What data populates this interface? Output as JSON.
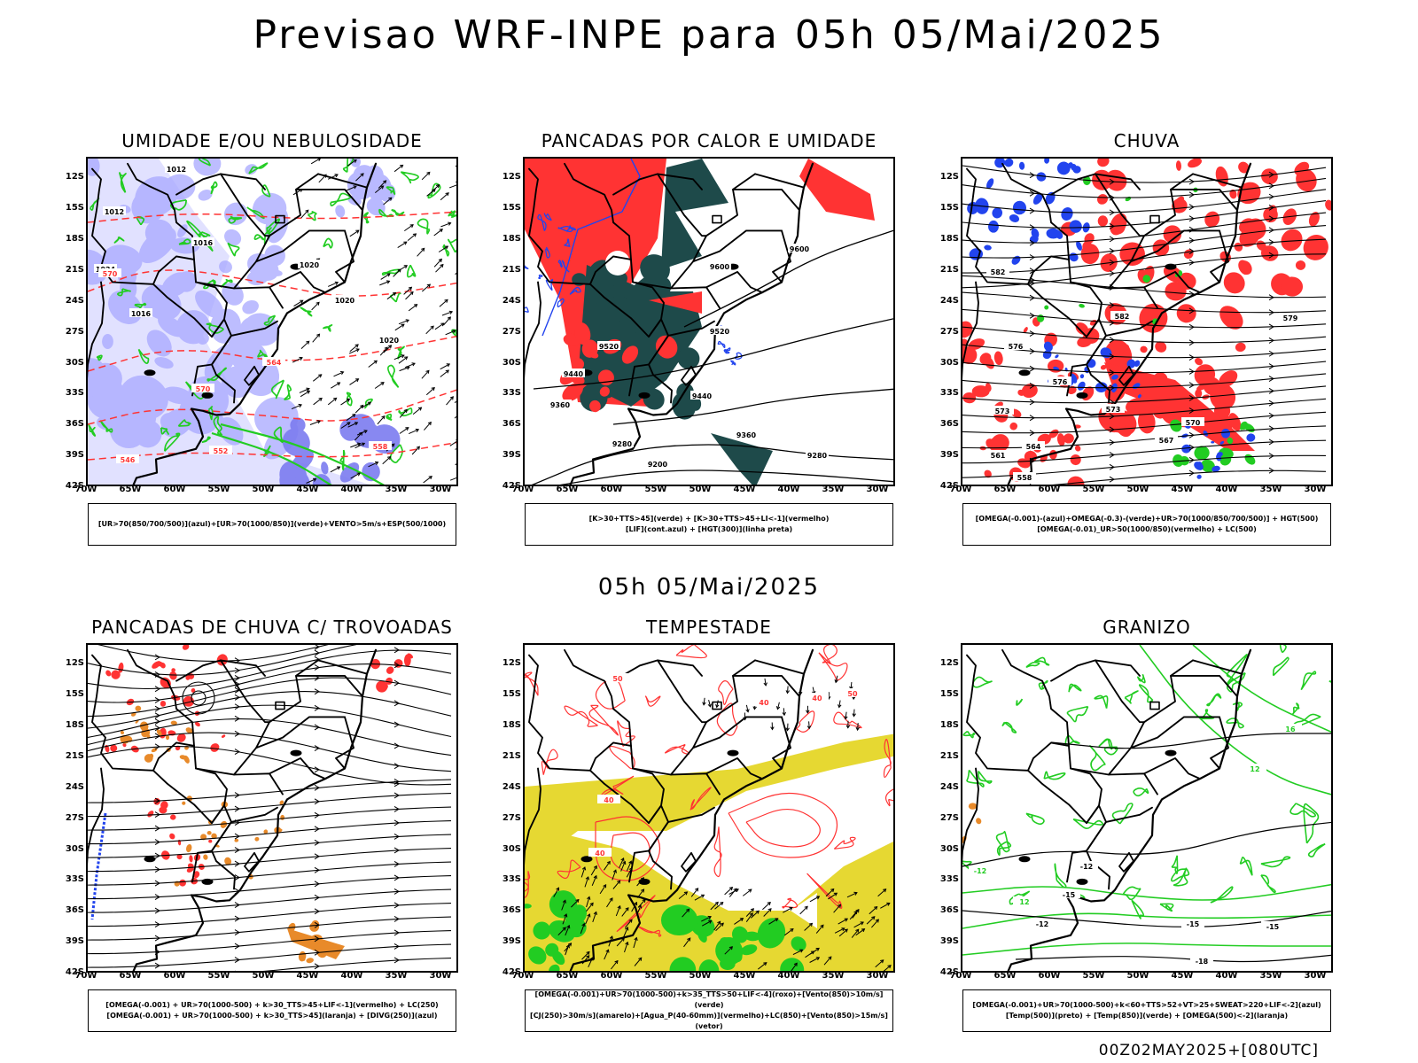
{
  "main_title": "Previsao WRF-INPE  para 05h 05/Mai/2025",
  "mid_title": "05h 05/Mai/2025",
  "footer": "00Z02MAY2025+[080UTC]",
  "lat_labels": [
    "12S",
    "15S",
    "18S",
    "21S",
    "24S",
    "27S",
    "30S",
    "33S",
    "36S",
    "39S",
    "42S"
  ],
  "lon_labels": [
    "70W",
    "65W",
    "60W",
    "55W",
    "50W",
    "45W",
    "40W",
    "35W",
    "30W"
  ],
  "colors": {
    "green": "#22cc22",
    "red": "#ff3333",
    "blue": "#2244ee",
    "lavender": "#a8a8ff",
    "darkteal": "#1e4a4a",
    "yellow": "#e6d832",
    "orange": "#e88a2a"
  },
  "panels": [
    {
      "title": "UMIDADE E/OU NEBULOSIDADE",
      "legend": [
        "[UR>70(850/700/500)](azul)+[UR>70(1000/850)](verde)+VENTO>5m/s+ESP(500/1000)"
      ],
      "labels": [
        "1012",
        "1012",
        "1016",
        "1016",
        "1020",
        "1020",
        "1020",
        "1024",
        "570",
        "570",
        "564",
        "558",
        "552",
        "546"
      ]
    },
    {
      "title": "PANCADAS POR CALOR E UMIDADE",
      "legend": [
        "[K>30+TTS>45](verde)  +  [K>30+TTS>45+LI<-1](vermelho)",
        "[LIF](cont.azul)  +  [HGT(300)](linha preta)"
      ],
      "labels": [
        "9600",
        "9600",
        "9520",
        "9520",
        "9440",
        "9440",
        "9360",
        "9360",
        "9280",
        "9280",
        "9200"
      ]
    },
    {
      "title": "CHUVA",
      "legend": [
        "[OMEGA(-0.001)-(azul)+OMEGA(-0.3)-(verde)+UR>70(1000/850/700/500)]  +  HGT(500)",
        "[OMEGA(-0.01)_UR>50(1000/850)(vermelho)  +  LC(500)"
      ],
      "labels": [
        "582",
        "582",
        "579",
        "576",
        "576",
        "573",
        "573",
        "570",
        "567",
        "564",
        "561",
        "558"
      ]
    },
    {
      "title": "PANCADAS DE CHUVA C/ TROVOADAS",
      "legend": [
        "[OMEGA(-0.001)  +  UR>70(1000-500)  +  k>30_TTS>45+LIF<-1](vermelho)  +  LC(250)",
        "[OMEGA(-0.001)  +  UR>70(1000-500)  +  k>30_TTS>45](laranja)  +  [DIVG(250)](azul)"
      ],
      "labels": []
    },
    {
      "title": "TEMPESTADE",
      "legend": [
        "[OMEGA(-0.001)+UR>70(1000-500)+k>35_TTS>50+LIF<-4](roxo)+[Vento(850)>10m/s](verde)",
        "[CJ(250)>30m/s](amarelo)+[Agua_P(40-60mm)](vermelho)+LC(850)+[Vento(850)>15m/s](vetor)"
      ],
      "labels": [
        "40",
        "40",
        "40",
        "50",
        "50",
        "40"
      ]
    },
    {
      "title": "GRANIZO",
      "legend": [
        "[OMEGA(-0.001)+UR>70(1000-500)+k<60+TTS>52+VT>25+SWEAT>220+LIF<-2](azul)",
        "[Temp(500)](preto)  +  [Temp(850)](verde)  +  [OMEGA(500)<-2](laranja)"
      ],
      "labels": [
        "-12",
        "-12",
        "-15",
        "-15",
        "-15",
        "-18",
        "-12",
        "12",
        "12",
        "16"
      ]
    }
  ]
}
